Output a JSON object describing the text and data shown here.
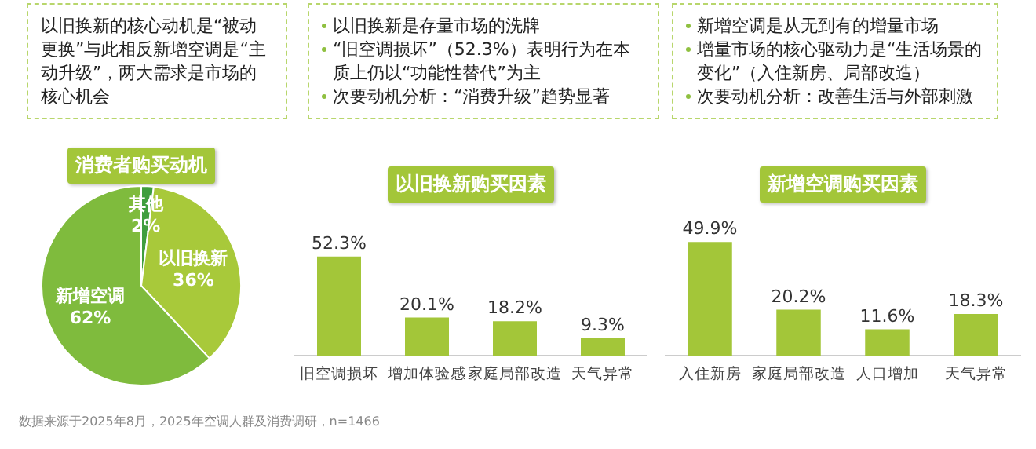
{
  "chart_data": [
    {
      "type": "pie",
      "title": "消费者购买动机",
      "categories": [
        "其他",
        "以旧换新",
        "新增空调"
      ],
      "values": [
        2,
        36,
        62
      ],
      "value_labels": [
        "2%",
        "36%",
        "62%"
      ],
      "colors": [
        "#3f9e3e",
        "#a8c93a",
        "#7fbb3d"
      ],
      "annotations": [
        "以旧换新的核心动机是“被动更换”与此相反新增空调是“主动升级”，两大需求是市场的核心机会",
        "数据来源于2025年8月，2025年空调人群及消费调研，n=1466"
      ]
    },
    {
      "type": "bar",
      "title": "以旧换新购买因素",
      "categories": [
        "旧空调损坏",
        "增加体验感",
        "家庭局部改造",
        "天气异常"
      ],
      "values": [
        52.3,
        20.1,
        18.2,
        9.3
      ],
      "value_labels": [
        "52.3%",
        "20.1%",
        "18.2%",
        "9.3%"
      ],
      "color": "#a3c639",
      "annotations": [
        "以旧换新是存量市场的洗牌",
        "“旧空调损坏”（52.3%）表明行为在本质上仍以“功能性替代”为主",
        "次要动机分析：“消费升级”趋势显著"
      ]
    },
    {
      "type": "bar",
      "title": "新增空调购买因素",
      "categories": [
        "入住新房",
        "家庭局部改造",
        "人口增加",
        "天气异常"
      ],
      "values": [
        49.9,
        20.2,
        11.6,
        18.3
      ],
      "value_labels": [
        "49.9%",
        "20.2%",
        "11.6%",
        "18.3%"
      ],
      "color": "#a3c639",
      "annotations": [
        "新增空调是从无到有的增量市场",
        "增量市场的核心驱动力是“生活场景的变化”（入住新房、局部改造）",
        "次要动机分析：改善生活与外部刺激"
      ]
    }
  ]
}
